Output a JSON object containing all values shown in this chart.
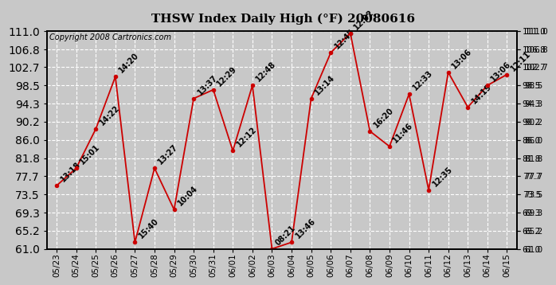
{
  "title": "THSW Index Daily High (°F) 20080616",
  "copyright": "Copyright 2008 Cartronics.com",
  "dates": [
    "05/23",
    "05/24",
    "05/25",
    "05/26",
    "05/27",
    "05/28",
    "05/29",
    "05/30",
    "05/31",
    "06/01",
    "06/02",
    "06/03",
    "06/04",
    "06/05",
    "06/06",
    "06/07",
    "06/08",
    "06/09",
    "06/10",
    "06/11",
    "06/12",
    "06/13",
    "06/14",
    "06/15"
  ],
  "values": [
    75.5,
    79.5,
    88.5,
    100.5,
    62.5,
    79.5,
    70.0,
    95.5,
    97.5,
    83.5,
    98.5,
    61.0,
    62.5,
    95.5,
    106.0,
    110.5,
    88.0,
    84.5,
    96.5,
    74.5,
    101.5,
    93.5,
    98.5,
    101.0
  ],
  "labels": [
    "13:18",
    "15:01",
    "14:22",
    "14:20",
    "15:40",
    "13:27",
    "10:04",
    "13:37",
    "12:29",
    "12:12",
    "12:48",
    "08:21",
    "13:46",
    "13:14",
    "12:45",
    "12:02",
    "16:20",
    "11:46",
    "12:33",
    "12:35",
    "13:06",
    "14:19",
    "13:06",
    "12:11"
  ],
  "ylim": [
    61.0,
    111.0
  ],
  "yticks": [
    61.0,
    65.2,
    69.3,
    73.5,
    77.7,
    81.8,
    86.0,
    90.2,
    94.3,
    98.5,
    102.7,
    106.8,
    111.0
  ],
  "line_color": "#cc0000",
  "marker_color": "#cc0000",
  "bg_color": "#c8c8c8",
  "plot_bg_color": "#c8c8c8",
  "grid_color": "#ffffff",
  "title_fontsize": 11,
  "copyright_fontsize": 7,
  "label_fontsize": 7,
  "tick_fontsize": 7.5
}
